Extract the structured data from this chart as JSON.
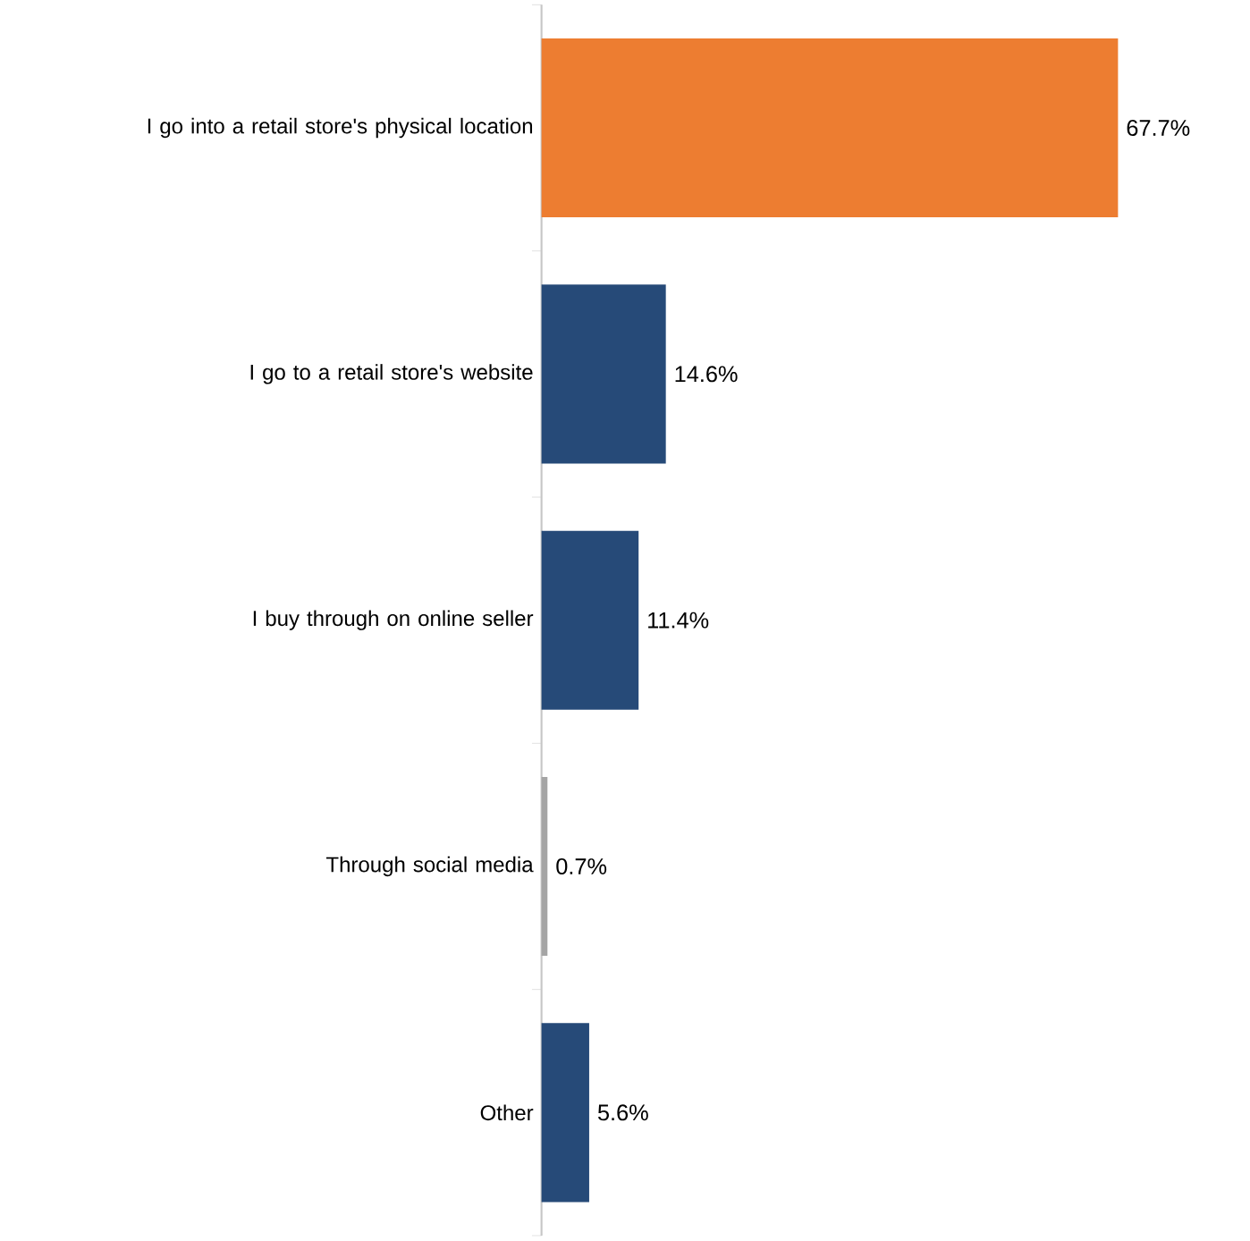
{
  "chart_data": {
    "type": "bar",
    "orientation": "horizontal",
    "categories": [
      "I go into a retail store's physical location",
      "I go to a retail store's website",
      "I buy through on online seller",
      "Through social media",
      "Other"
    ],
    "values": [
      67.7,
      14.6,
      11.4,
      0.7,
      5.6
    ],
    "colors": [
      "#ed7d31",
      "#264a78",
      "#264a78",
      "#a5a5a5",
      "#264a78"
    ],
    "value_labels": [
      "67.7%",
      "14.6%",
      "11.4%",
      "0.7%",
      "5.6%"
    ]
  }
}
